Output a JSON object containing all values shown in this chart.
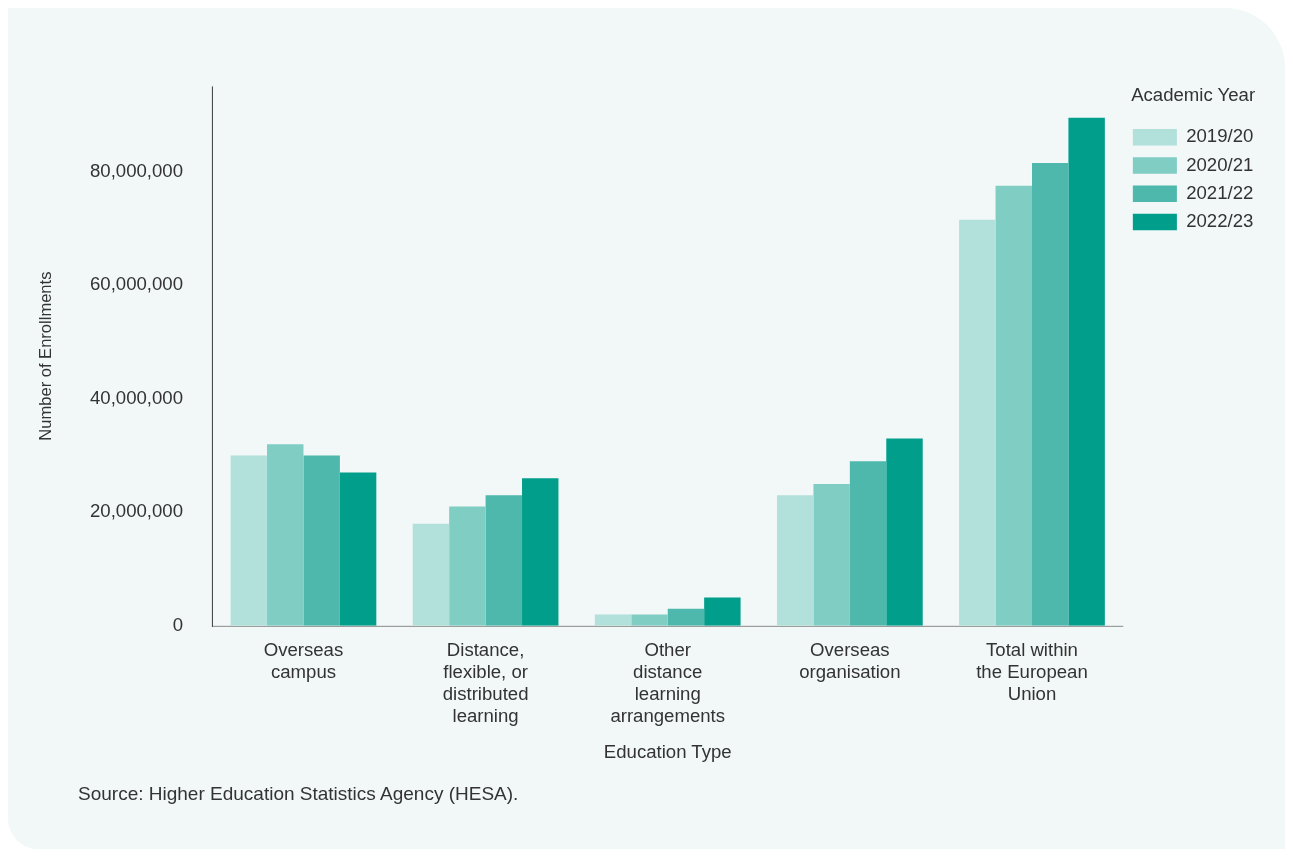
{
  "chart_data": {
    "type": "bar",
    "xlabel": "Education Type",
    "ylabel": "Number of Enrollments",
    "legend_title": "Academic Year",
    "categories": [
      "Overseas campus",
      "Distance, flexible, or distributed learning",
      "Other distance learning arrangements",
      "Overseas organisation",
      "Total within the European Union"
    ],
    "series": [
      {
        "name": "2019/20",
        "color": "#b2e0da",
        "values": [
          30000000,
          18000000,
          2000000,
          23000000,
          71500000
        ]
      },
      {
        "name": "2020/21",
        "color": "#80cdc4",
        "values": [
          32000000,
          21000000,
          2000000,
          25000000,
          77500000
        ]
      },
      {
        "name": "2021/22",
        "color": "#4db8ab",
        "values": [
          30000000,
          23000000,
          3000000,
          29000000,
          81500000
        ]
      },
      {
        "name": "2022/23",
        "color": "#009e8b",
        "values": [
          27000000,
          26000000,
          5000000,
          33000000,
          89500000
        ]
      }
    ],
    "ylim": [
      0,
      95000000
    ],
    "yticks": [
      {
        "value": 0,
        "label": "0"
      },
      {
        "value": 20000000,
        "label": "20,000,000"
      },
      {
        "value": 40000000,
        "label": "40,000,000"
      },
      {
        "value": 60000000,
        "label": "60,000,000"
      },
      {
        "value": 80000000,
        "label": "80,000,000"
      }
    ],
    "grid": false,
    "legend": "top right",
    "annotations": [
      "Source: Higher Education Statistics Agency (HESA)."
    ]
  }
}
